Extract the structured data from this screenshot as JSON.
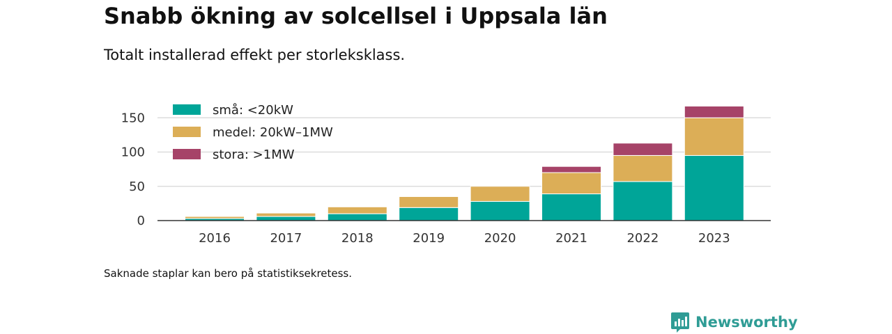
{
  "title": "Snabb ökning av solcellsel i Uppsala län",
  "subtitle": "Totalt installerad effekt per storleksklass.",
  "footnote": "Saknade staplar kan bero på statistiksekretess.",
  "brand": {
    "name": "Newsworthy",
    "icon": "newsworthy-logo-icon",
    "color": "#2f9c95"
  },
  "chart_data": {
    "type": "bar",
    "stacked": true,
    "categories": [
      "2016",
      "2017",
      "2018",
      "2019",
      "2020",
      "2021",
      "2022",
      "2023"
    ],
    "series": [
      {
        "name": "små: <20kW",
        "color": "#00a598",
        "values": [
          3,
          6,
          10,
          19,
          28,
          39,
          57,
          95
        ]
      },
      {
        "name": "medel: 20kW–1MW",
        "color": "#dcae57",
        "values": [
          3,
          5,
          10,
          16,
          22,
          31,
          38,
          55
        ]
      },
      {
        "name": "stora: >1MW",
        "color": "#a64368",
        "values": [
          0,
          0,
          0,
          0,
          0,
          9,
          18,
          17
        ]
      }
    ],
    "ylim": [
      0,
      167
    ],
    "yticks": [
      0,
      50,
      100,
      150
    ],
    "grid": true,
    "legend_position": "top-left",
    "xlabel": "",
    "ylabel": ""
  }
}
